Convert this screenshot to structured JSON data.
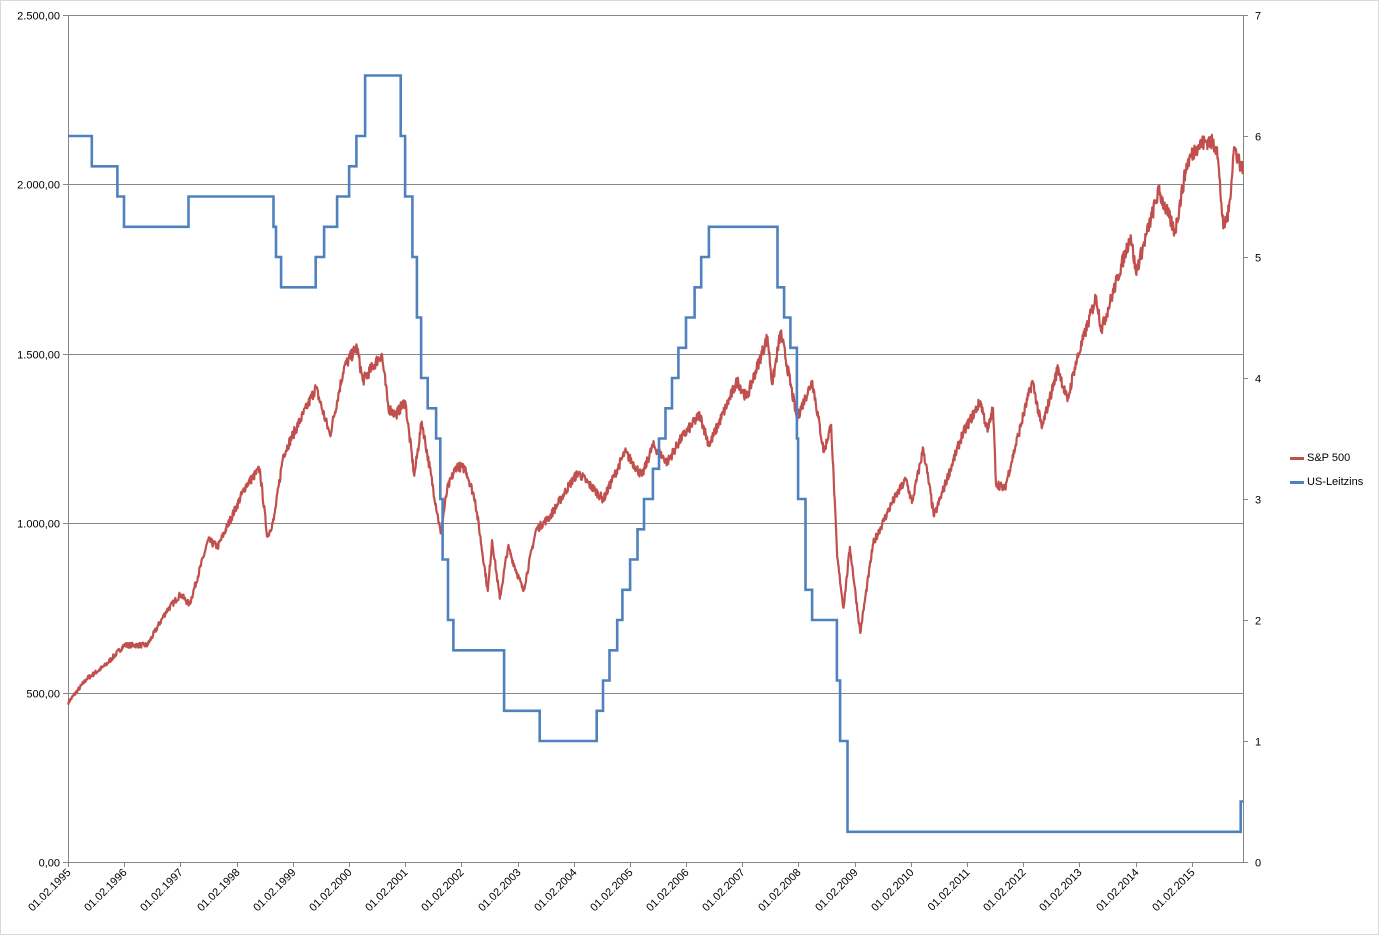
{
  "chart_data": {
    "type": "line",
    "title": "",
    "xlabel": "",
    "ylabel": "",
    "grid": true,
    "legend_position": "right",
    "x_tick_labels": [
      "01.02.1995",
      "01.02.1996",
      "01.02.1997",
      "01.02.1998",
      "01.02.1999",
      "01.02.2000",
      "01.02.2001",
      "01.02.2002",
      "01.02.2003",
      "01.02.2004",
      "01.02.2005",
      "01.02.2006",
      "01.02.2007",
      "01.02.2008",
      "01.02.2009",
      "01.02.2010",
      "01.02.2011",
      "01.02.2012",
      "01.02.2013",
      "01.02.2014",
      "01.02.2015"
    ],
    "xlim": [
      "1995-02-01",
      "2015-12-31"
    ],
    "y_left": {
      "ylim": [
        0,
        2500
      ],
      "tick_labels": [
        "0,00",
        "500,00",
        "1.000,00",
        "1.500,00",
        "2.000,00",
        "2.500,00"
      ],
      "ticks": [
        0,
        500,
        1000,
        1500,
        2000,
        2500
      ]
    },
    "y_right": {
      "ylim": [
        0,
        7
      ],
      "tick_labels": [
        "0",
        "1",
        "2",
        "3",
        "4",
        "5",
        "6",
        "7"
      ],
      "ticks": [
        0,
        1,
        2,
        3,
        4,
        5,
        6,
        7
      ]
    },
    "series": [
      {
        "name": "S&P 500",
        "axis": "left",
        "color": "#c0504d",
        "points": [
          [
            "1995-02-01",
            470
          ],
          [
            "1995-06-01",
            540
          ],
          [
            "1995-10-01",
            580
          ],
          [
            "1996-02-01",
            640
          ],
          [
            "1996-07-01",
            640
          ],
          [
            "1996-11-01",
            740
          ],
          [
            "1997-02-01",
            790
          ],
          [
            "1997-04-01",
            760
          ],
          [
            "1997-08-01",
            950
          ],
          [
            "1997-10-01",
            930
          ],
          [
            "1998-02-01",
            1050
          ],
          [
            "1998-04-01",
            1110
          ],
          [
            "1998-07-01",
            1160
          ],
          [
            "1998-08-20",
            960
          ],
          [
            "1998-10-01",
            1010
          ],
          [
            "1998-12-01",
            1200
          ],
          [
            "1999-02-01",
            1260
          ],
          [
            "1999-05-01",
            1340
          ],
          [
            "1999-07-01",
            1400
          ],
          [
            "1999-10-01",
            1260
          ],
          [
            "1999-12-31",
            1460
          ],
          [
            "2000-03-24",
            1520
          ],
          [
            "2000-05-01",
            1420
          ],
          [
            "2000-09-01",
            1500
          ],
          [
            "2000-10-15",
            1340
          ],
          [
            "2000-12-01",
            1320
          ],
          [
            "2001-02-01",
            1360
          ],
          [
            "2001-04-01",
            1140
          ],
          [
            "2001-05-20",
            1300
          ],
          [
            "2001-09-20",
            970
          ],
          [
            "2001-11-01",
            1100
          ],
          [
            "2002-01-01",
            1170
          ],
          [
            "2002-03-01",
            1160
          ],
          [
            "2002-05-01",
            1070
          ],
          [
            "2002-07-23",
            800
          ],
          [
            "2002-08-20",
            950
          ],
          [
            "2002-10-09",
            777
          ],
          [
            "2002-12-01",
            930
          ],
          [
            "2003-03-11",
            800
          ],
          [
            "2003-06-01",
            980
          ],
          [
            "2003-09-01",
            1020
          ],
          [
            "2003-12-31",
            1110
          ],
          [
            "2004-03-01",
            1150
          ],
          [
            "2004-08-12",
            1070
          ],
          [
            "2004-12-31",
            1210
          ],
          [
            "2005-04-20",
            1140
          ],
          [
            "2005-07-01",
            1230
          ],
          [
            "2005-10-01",
            1180
          ],
          [
            "2005-12-31",
            1250
          ],
          [
            "2006-05-01",
            1320
          ],
          [
            "2006-07-01",
            1230
          ],
          [
            "2006-12-31",
            1420
          ],
          [
            "2007-03-01",
            1370
          ],
          [
            "2007-07-15",
            1550
          ],
          [
            "2007-08-15",
            1410
          ],
          [
            "2007-10-09",
            1565
          ],
          [
            "2008-01-22",
            1310
          ],
          [
            "2008-05-01",
            1420
          ],
          [
            "2008-07-15",
            1210
          ],
          [
            "2008-09-01",
            1290
          ],
          [
            "2008-10-10",
            900
          ],
          [
            "2008-11-20",
            750
          ],
          [
            "2009-01-01",
            930
          ],
          [
            "2009-03-09",
            676
          ],
          [
            "2009-06-01",
            940
          ],
          [
            "2009-10-01",
            1060
          ],
          [
            "2010-01-01",
            1130
          ],
          [
            "2010-02-08",
            1060
          ],
          [
            "2010-04-23",
            1220
          ],
          [
            "2010-07-02",
            1020
          ],
          [
            "2010-12-31",
            1260
          ],
          [
            "2011-04-29",
            1360
          ],
          [
            "2011-06-15",
            1270
          ],
          [
            "2011-07-20",
            1340
          ],
          [
            "2011-08-08",
            1120
          ],
          [
            "2011-10-03",
            1100
          ],
          [
            "2011-12-31",
            1260
          ],
          [
            "2012-04-01",
            1420
          ],
          [
            "2012-06-01",
            1280
          ],
          [
            "2012-09-15",
            1460
          ],
          [
            "2012-11-15",
            1360
          ],
          [
            "2013-01-01",
            1460
          ],
          [
            "2013-05-21",
            1670
          ],
          [
            "2013-06-24",
            1570
          ],
          [
            "2013-12-31",
            1850
          ],
          [
            "2014-02-03",
            1740
          ],
          [
            "2014-07-01",
            1980
          ],
          [
            "2014-10-15",
            1860
          ],
          [
            "2014-12-31",
            2060
          ],
          [
            "2015-03-01",
            2110
          ],
          [
            "2015-05-20",
            2130
          ],
          [
            "2015-07-15",
            2110
          ],
          [
            "2015-08-25",
            1870
          ],
          [
            "2015-09-30",
            1920
          ],
          [
            "2015-11-03",
            2110
          ],
          [
            "2015-12-31",
            2040
          ]
        ]
      },
      {
        "name": "US-Leitzins",
        "axis": "right",
        "color": "#4f81bd",
        "points": [
          [
            "1995-02-01",
            6.0
          ],
          [
            "1995-07-06",
            5.75
          ],
          [
            "1995-12-19",
            5.5
          ],
          [
            "1996-01-31",
            5.25
          ],
          [
            "1997-03-25",
            5.5
          ],
          [
            "1998-09-29",
            5.25
          ],
          [
            "1998-10-15",
            5.0
          ],
          [
            "1998-11-17",
            4.75
          ],
          [
            "1999-06-30",
            5.0
          ],
          [
            "1999-08-24",
            5.25
          ],
          [
            "1999-11-16",
            5.5
          ],
          [
            "2000-02-02",
            5.75
          ],
          [
            "2000-03-21",
            6.0
          ],
          [
            "2000-05-16",
            6.5
          ],
          [
            "2001-01-03",
            6.0
          ],
          [
            "2001-01-31",
            5.5
          ],
          [
            "2001-03-20",
            5.0
          ],
          [
            "2001-04-18",
            4.5
          ],
          [
            "2001-05-15",
            4.0
          ],
          [
            "2001-06-27",
            3.75
          ],
          [
            "2001-08-21",
            3.5
          ],
          [
            "2001-09-17",
            3.0
          ],
          [
            "2001-10-02",
            2.5
          ],
          [
            "2001-11-06",
            2.0
          ],
          [
            "2001-12-11",
            1.75
          ],
          [
            "2002-11-06",
            1.25
          ],
          [
            "2003-06-25",
            1.0
          ],
          [
            "2004-06-30",
            1.25
          ],
          [
            "2004-08-10",
            1.5
          ],
          [
            "2004-09-21",
            1.75
          ],
          [
            "2004-11-10",
            2.0
          ],
          [
            "2004-12-14",
            2.25
          ],
          [
            "2005-02-02",
            2.5
          ],
          [
            "2005-03-22",
            2.75
          ],
          [
            "2005-05-03",
            3.0
          ],
          [
            "2005-06-30",
            3.25
          ],
          [
            "2005-08-09",
            3.5
          ],
          [
            "2005-09-20",
            3.75
          ],
          [
            "2005-11-01",
            4.0
          ],
          [
            "2005-12-13",
            4.25
          ],
          [
            "2006-01-31",
            4.5
          ],
          [
            "2006-03-28",
            4.75
          ],
          [
            "2006-05-10",
            5.0
          ],
          [
            "2006-06-29",
            5.25
          ],
          [
            "2007-09-18",
            4.75
          ],
          [
            "2007-10-31",
            4.5
          ],
          [
            "2007-12-11",
            4.25
          ],
          [
            "2008-01-22",
            3.5
          ],
          [
            "2008-01-30",
            3.0
          ],
          [
            "2008-03-18",
            2.25
          ],
          [
            "2008-04-30",
            2.0
          ],
          [
            "2008-10-08",
            1.5
          ],
          [
            "2008-10-29",
            1.0
          ],
          [
            "2008-12-16",
            0.25
          ],
          [
            "2015-12-16",
            0.5
          ],
          [
            "2015-12-31",
            0.5
          ]
        ]
      }
    ]
  }
}
